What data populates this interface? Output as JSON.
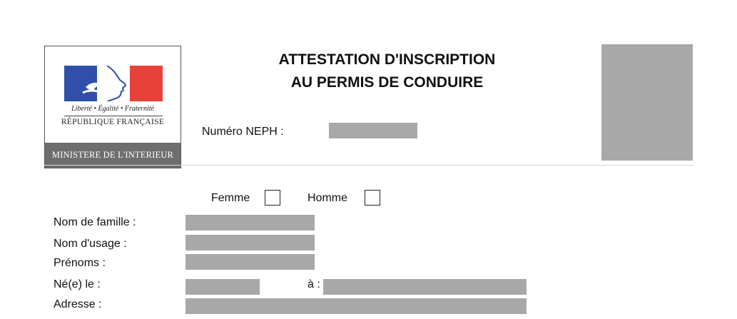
{
  "header": {
    "logo": {
      "motto": "Liberté • Égalité • Fraternité",
      "republic": "RÉPUBLIQUE FRANÇAISE",
      "ministry": "MINISTERE DE L'INTERIEUR",
      "colors": {
        "blue": "#2f4fa8",
        "white": "#ffffff",
        "red": "#e8413b"
      }
    },
    "title_line1": "ATTESTATION D'INSCRIPTION",
    "title_line2": "AU PERMIS DE CONDUIRE",
    "neph_label": "Numéro NEPH :"
  },
  "sex": {
    "femme_label": "Femme",
    "homme_label": "Homme"
  },
  "fields": {
    "nom_famille": "Nom de famille :",
    "nom_usage": "Nom d'usage :",
    "prenoms": "Prénoms :",
    "ne_le": "Né(e) le :",
    "a": "à :",
    "adresse": "Adresse :"
  },
  "redaction_color": "#a8a8a8"
}
